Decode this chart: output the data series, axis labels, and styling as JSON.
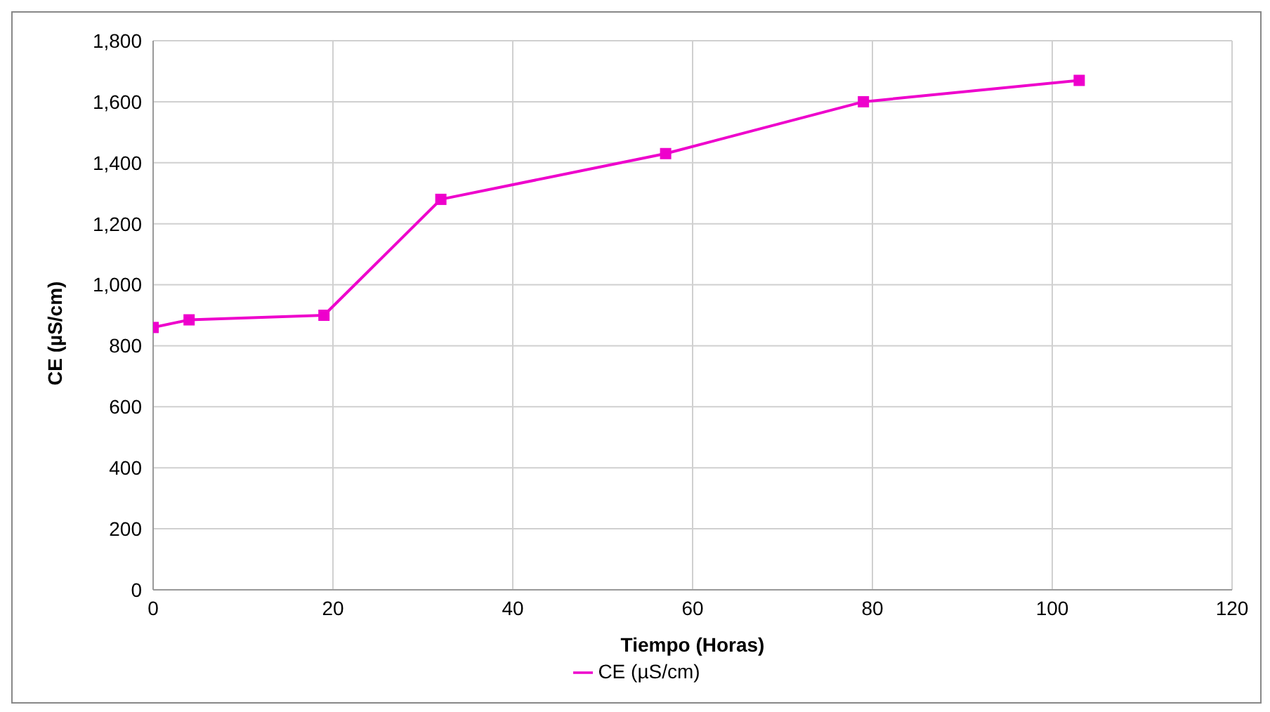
{
  "chart_data": {
    "type": "line",
    "xlabel": "Tiempo (Horas)",
    "ylabel": "CE (µS/cm)",
    "x": [
      0,
      4,
      19,
      32,
      57,
      79,
      103
    ],
    "series": [
      {
        "name": "CE (µS/cm)",
        "color": "#ee00cc",
        "values": [
          860,
          885,
          900,
          1280,
          1430,
          1600,
          1670
        ]
      }
    ],
    "xlim": [
      0,
      120
    ],
    "xticks": [
      0,
      20,
      40,
      60,
      80,
      100,
      120
    ],
    "ylim": [
      0,
      1800
    ],
    "yticks": [
      0,
      {
        "value": 200,
        "label": "200"
      },
      {
        "value": 400,
        "label": "400"
      },
      {
        "value": 600,
        "label": "600"
      },
      {
        "value": 800,
        "label": "800"
      },
      {
        "value": 1000,
        "label": "1,000"
      },
      {
        "value": 1200,
        "label": "1,200"
      },
      {
        "value": 1400,
        "label": "1,400"
      },
      {
        "value": 1600,
        "label": "1,600"
      },
      {
        "value": 1800,
        "label": "1,800"
      }
    ],
    "grid": true,
    "legend": "bottom",
    "marker": "square",
    "line_style": "solid"
  }
}
